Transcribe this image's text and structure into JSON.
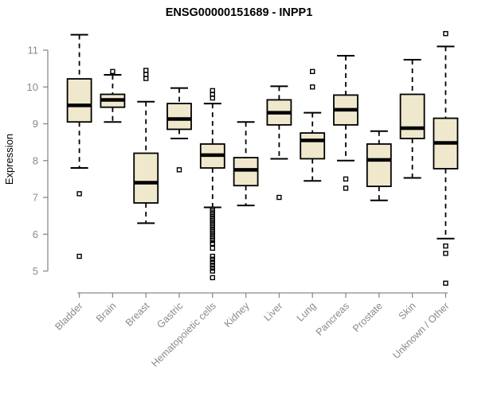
{
  "chart_data": {
    "type": "boxplot",
    "title": "ENSG00000151689 - INPP1",
    "ylabel": "Expression",
    "xlabel": "",
    "y_ticks": [
      5,
      6,
      7,
      8,
      9,
      10,
      11
    ],
    "ylim": [
      4.4,
      11.7
    ],
    "grid": "off",
    "legend": "none",
    "categories": [
      "Bladder",
      "Brain",
      "Breast",
      "Gastric",
      "Hematopoietic cells",
      "Kidney",
      "Liver",
      "Lung",
      "Pancreas",
      "Prostate",
      "Skin",
      "Unknown / Other"
    ],
    "series": [
      {
        "name": "Bladder",
        "whislo": 7.8,
        "q1": 9.05,
        "med": 9.5,
        "q3": 10.22,
        "whishi": 11.42,
        "outliers": [
          7.1,
          5.4
        ]
      },
      {
        "name": "Brain",
        "whislo": 9.05,
        "q1": 9.45,
        "med": 9.65,
        "q3": 9.8,
        "whishi": 10.33,
        "outliers": [
          10.42
        ]
      },
      {
        "name": "Breast",
        "whislo": 6.3,
        "q1": 6.85,
        "med": 7.4,
        "q3": 8.2,
        "whishi": 9.6,
        "outliers": [
          10.45,
          10.34,
          10.23
        ]
      },
      {
        "name": "Gastric",
        "whislo": 8.6,
        "q1": 8.85,
        "med": 9.13,
        "q3": 9.55,
        "whishi": 9.97,
        "outliers": [
          7.75
        ]
      },
      {
        "name": "Hematopoietic cells",
        "whislo": 6.73,
        "q1": 7.8,
        "med": 8.15,
        "q3": 8.45,
        "whishi": 9.55,
        "outliers": [
          9.9,
          9.8,
          9.7,
          6.68,
          6.63,
          6.58,
          6.53,
          6.48,
          6.43,
          6.38,
          6.33,
          6.28,
          6.23,
          6.18,
          6.13,
          6.08,
          6.03,
          5.98,
          5.93,
          5.88,
          5.83,
          5.75,
          5.62,
          5.4,
          5.32,
          5.24,
          5.16,
          5.08,
          5.0,
          4.82
        ]
      },
      {
        "name": "Kidney",
        "whislo": 6.78,
        "q1": 7.32,
        "med": 7.75,
        "q3": 8.08,
        "whishi": 9.05,
        "outliers": []
      },
      {
        "name": "Liver",
        "whislo": 8.05,
        "q1": 8.97,
        "med": 9.3,
        "q3": 9.65,
        "whishi": 10.02,
        "outliers": [
          7.0
        ]
      },
      {
        "name": "Lung",
        "whislo": 7.45,
        "q1": 8.05,
        "med": 8.55,
        "q3": 8.75,
        "whishi": 9.3,
        "outliers": [
          10.42,
          10.0
        ]
      },
      {
        "name": "Pancreas",
        "whislo": 8.0,
        "q1": 8.97,
        "med": 9.38,
        "q3": 9.78,
        "whishi": 10.85,
        "outliers": [
          7.5,
          7.25
        ]
      },
      {
        "name": "Prostate",
        "whislo": 6.92,
        "q1": 7.3,
        "med": 8.02,
        "q3": 8.45,
        "whishi": 8.8,
        "outliers": []
      },
      {
        "name": "Skin",
        "whislo": 7.53,
        "q1": 8.6,
        "med": 8.88,
        "q3": 9.8,
        "whishi": 10.74,
        "outliers": []
      },
      {
        "name": "Unknown / Other",
        "whislo": 5.88,
        "q1": 7.78,
        "med": 8.48,
        "q3": 9.15,
        "whishi": 11.1,
        "outliers": [
          11.45,
          5.68,
          5.48,
          4.67
        ]
      }
    ],
    "colors": {
      "box_fill": "#EFE8CC",
      "box_border": "#000000",
      "median": "#000000",
      "whisker": "#000000",
      "outlier": "#000000",
      "axis": "#8a8a8a",
      "tick_label": "#8a8a8a",
      "title": "#000000"
    }
  }
}
